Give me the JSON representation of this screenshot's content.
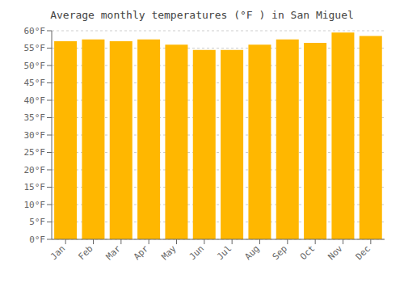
{
  "chart_data": {
    "type": "bar",
    "title": "Average monthly temperatures (°F ) in San Miguel",
    "categories": [
      "Jan",
      "Feb",
      "Mar",
      "Apr",
      "May",
      "Jun",
      "Jul",
      "Aug",
      "Sep",
      "Oct",
      "Nov",
      "Dec"
    ],
    "values": [
      57.0,
      57.5,
      57.0,
      57.5,
      56.0,
      54.5,
      54.5,
      56.0,
      57.5,
      56.5,
      59.5,
      58.5
    ],
    "color": "#FFB700",
    "ylim": [
      0,
      60
    ],
    "yticks": [
      {
        "value": 0,
        "label": "0°F"
      },
      {
        "value": 5,
        "label": "5°F"
      },
      {
        "value": 10,
        "label": "10°F"
      },
      {
        "value": 15,
        "label": "15°F"
      },
      {
        "value": 20,
        "label": "20°F"
      },
      {
        "value": 25,
        "label": "25°F"
      },
      {
        "value": 30,
        "label": "30°F"
      },
      {
        "value": 35,
        "label": "35°F"
      },
      {
        "value": 40,
        "label": "40°F"
      },
      {
        "value": 45,
        "label": "45°F"
      },
      {
        "value": 50,
        "label": "50°F"
      },
      {
        "value": 55,
        "label": "55°F"
      },
      {
        "value": 60,
        "label": "60°F"
      }
    ],
    "grid": true
  }
}
